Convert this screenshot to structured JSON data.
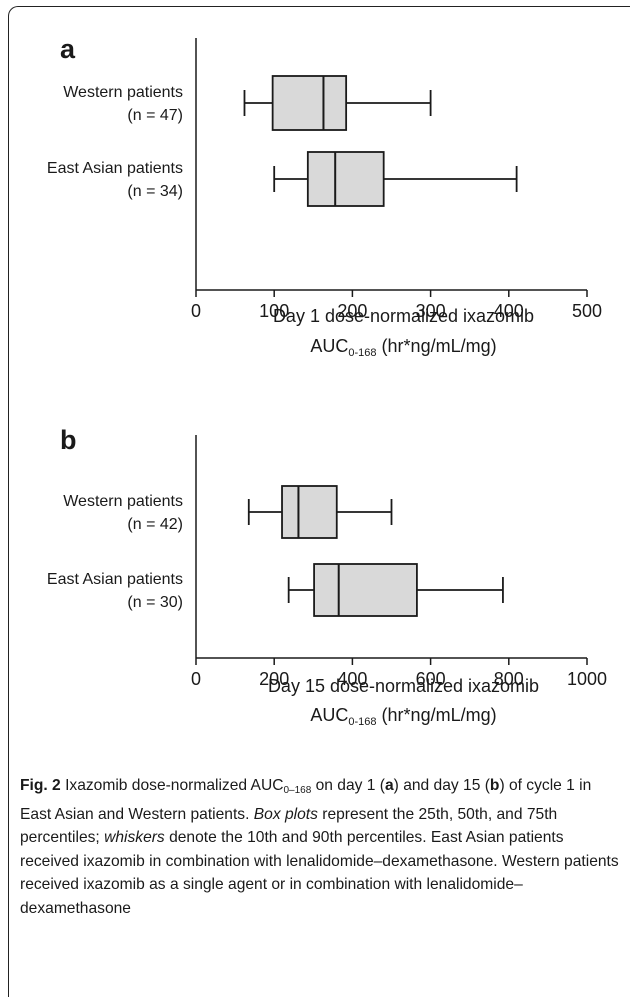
{
  "chart_data": [
    {
      "type": "box",
      "panel_label": "a",
      "xlabel_line1": "Day 1 dose-normalized ixazomib",
      "xlabel_line2_main": "AUC",
      "xlabel_line2_sub": "0-168",
      "xlabel_line2_rest": " (hr*ng/mL/mg)",
      "xlim": [
        0,
        500
      ],
      "xticks": [
        "0",
        "100",
        "200",
        "300",
        "400",
        "500"
      ],
      "series": [
        {
          "name_line1": "Western patients",
          "name_line2": "(n = 47)",
          "p10": 62,
          "p25": 98,
          "p50": 163,
          "p75": 192,
          "p90": 300
        },
        {
          "name_line1": "East Asian patients",
          "name_line2": "(n = 34)",
          "p10": 100,
          "p25": 143,
          "p50": 178,
          "p75": 240,
          "p90": 410
        }
      ]
    },
    {
      "type": "box",
      "panel_label": "b",
      "xlabel_line1": "Day 15 dose-normalized ixazomib",
      "xlabel_line2_main": "AUC",
      "xlabel_line2_sub": "0-168",
      "xlabel_line2_rest": " (hr*ng/mL/mg)",
      "xlim": [
        0,
        1000
      ],
      "xticks": [
        "0",
        "200",
        "400",
        "600",
        "800",
        "1000"
      ],
      "series": [
        {
          "name_line1": "Western patients",
          "name_line2": "(n = 42)",
          "p10": 135,
          "p25": 220,
          "p50": 262,
          "p75": 360,
          "p90": 500
        },
        {
          "name_line1": "East Asian patients",
          "name_line2": "(n = 30)",
          "p10": 237,
          "p25": 302,
          "p50": 365,
          "p75": 565,
          "p90": 785
        }
      ]
    }
  ],
  "colors": {
    "box_fill": "#d9d9d9",
    "line": "#1a1a1a"
  },
  "caption": {
    "fig_label": "Fig. 2",
    "t1": " Ixazomib dose-normalized AUC",
    "t1_sub": "0–168",
    "t2": " on day 1 (",
    "a": "a",
    "t3": ") and day 15 (",
    "b": "b",
    "t4": ") of cycle 1 in East Asian and Western patients. ",
    "box_plots": "Box plots",
    "t5": " represent the 25th, 50th, and 75th percentiles; ",
    "whiskers": "whiskers",
    "t6": " denote the 10th and 90th percentiles. East Asian patients received ixazomib in combination with lenalidomide–dexamethasone. Western patients received ixazomib as a single agent or in combination with lenalidomide–dexamethasone"
  }
}
